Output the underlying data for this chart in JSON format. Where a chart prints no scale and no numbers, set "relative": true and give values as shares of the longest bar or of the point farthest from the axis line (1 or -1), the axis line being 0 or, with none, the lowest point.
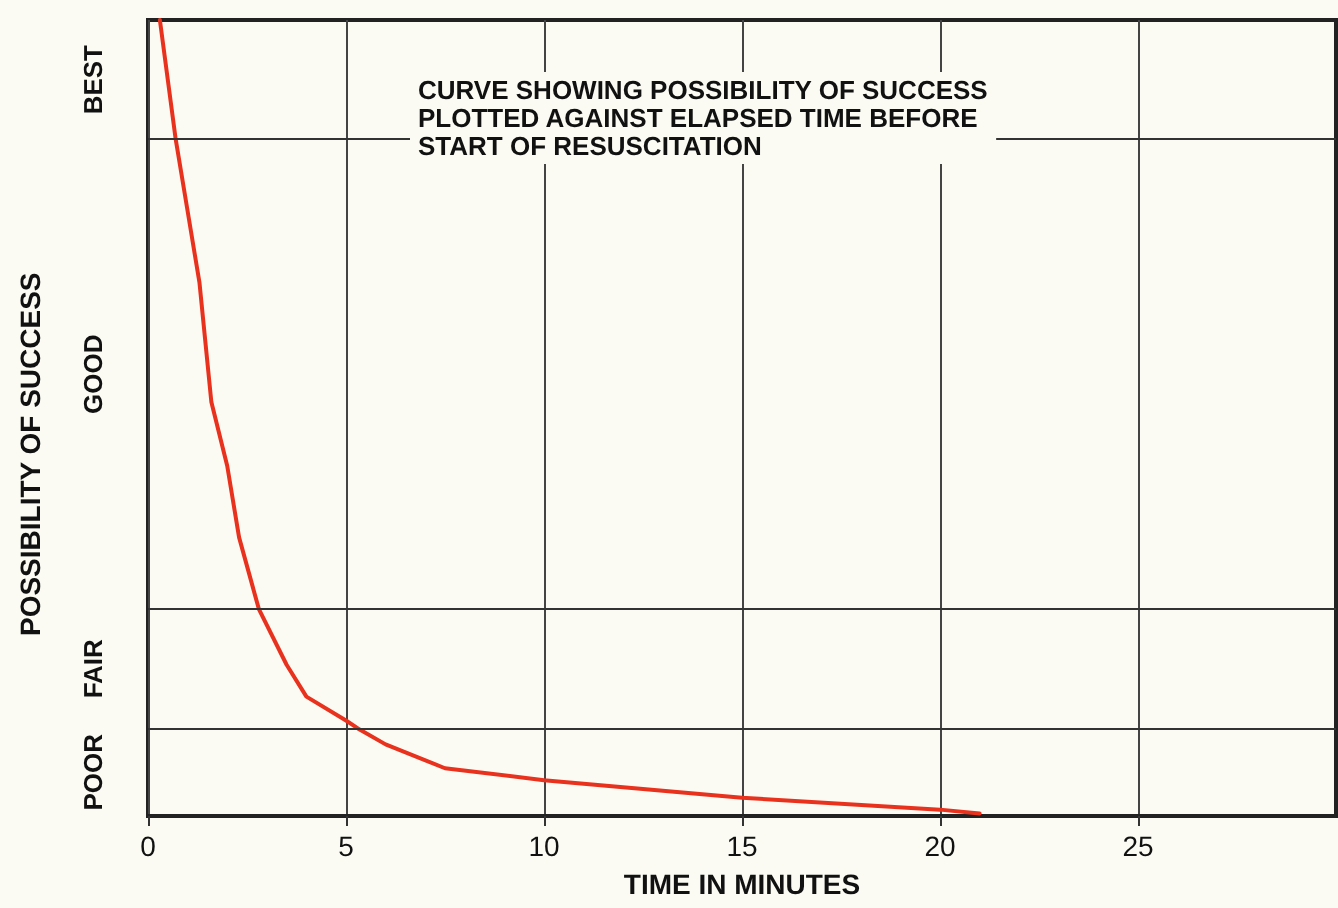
{
  "chart_data": {
    "type": "line",
    "relative": true,
    "xlabel": "TIME IN MINUTES",
    "ylabel": "POSSIBILITY OF SUCCESS",
    "annotations": [
      "CURVE SHOWING POSSIBILITY OF SUCCESS\nPLOTTED AGAINST ELAPSED TIME BEFORE\nSTART OF RESUSCITATION",
      "BEST",
      "GOOD",
      "FAIR",
      "POOR"
    ],
    "xlim": [
      0,
      30
    ],
    "xticks": [
      0,
      5,
      10,
      15,
      20,
      25
    ],
    "grid": "x",
    "marker": "none",
    "line_style": "solid",
    "series": [
      {
        "color": "#e8321e",
        "x": [
          0.3,
          0.7,
          1,
          1.3,
          1.6,
          2,
          2.3,
          2.8,
          3.5,
          4,
          5,
          5.3,
          6,
          7.5,
          10,
          15,
          20,
          21
        ],
        "values": [
          1,
          0.85,
          0.76,
          0.67,
          0.52,
          0.44,
          0.35,
          0.26,
          0.19,
          0.15,
          0.12,
          0.11,
          0.09,
          0.06,
          0.045,
          0.023,
          0.008,
          0.003
        ]
      }
    ],
    "ref_lines": [
      {
        "axis": "y",
        "value": 0.85
      },
      {
        "axis": "y",
        "value": 0.26
      },
      {
        "axis": "y",
        "value": 0.11
      }
    ]
  }
}
